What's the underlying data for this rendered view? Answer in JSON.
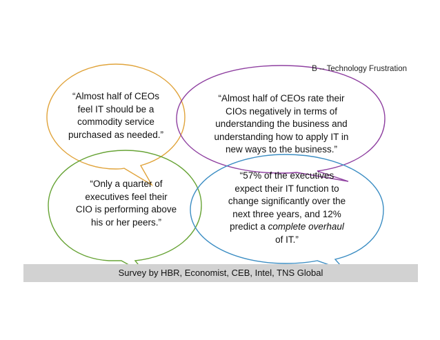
{
  "title": "B -- Technology Frustration",
  "footer": "Survey by HBR, Economist, CEB, Intel, TNS Global",
  "colors": {
    "orange": "#E0A33A",
    "purple": "#8E3FA0",
    "green": "#67A335",
    "blue": "#3B8DC3",
    "footer_bar": "#D2D2D2"
  },
  "bubbles": [
    {
      "id": "ceos-commodity",
      "color": "orange",
      "lines": [
        "“Almost half of CEOs",
        "feel IT should be a",
        "commodity service",
        "purchased as needed.”"
      ]
    },
    {
      "id": "ceos-rate-cios",
      "color": "purple",
      "lines": [
        "“Almost half of CEOs rate their",
        "CIOs negatively in terms of",
        "understanding the business and",
        "understanding how to apply IT in",
        "new ways to the business.”"
      ]
    },
    {
      "id": "quarter-executives",
      "color": "green",
      "lines": [
        "“Only a quarter of",
        "executives feel their",
        "CIO is performing above",
        "his or her peers.”"
      ]
    },
    {
      "id": "percent-executives",
      "color": "blue",
      "lines": [
        "“57% of the executives",
        "expect their IT function to",
        "change significantly over the",
        "next three years, and 12%",
        "predict a complete overhaul",
        "of IT.”"
      ]
    }
  ]
}
